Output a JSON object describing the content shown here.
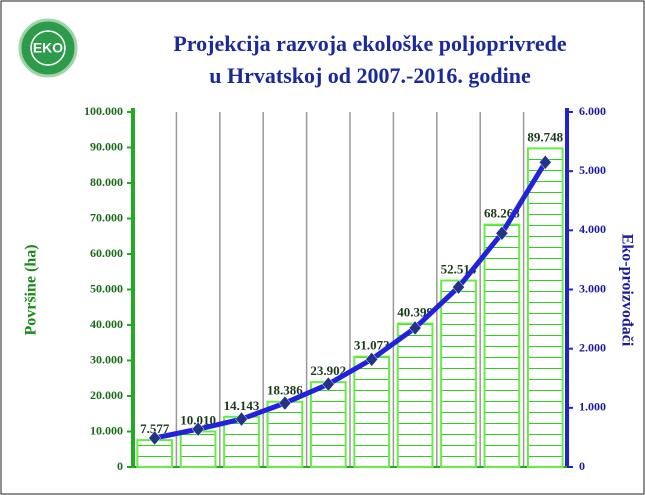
{
  "logo": "EKO",
  "chart_data": {
    "type": "bar",
    "title": [
      "Projekcija razvoja ekološke poljoprivrede",
      "u Hrvatskoj od 2007.-2016. godine"
    ],
    "ylabel": "Površine (ha)",
    "y2label": "Eko-proizvođači",
    "categories": [
      null,
      null,
      null,
      null,
      null,
      null,
      null,
      null,
      null,
      null
    ],
    "series": [
      {
        "type": "bar",
        "color": "#66ee44",
        "values": [
          7577,
          10010,
          14143,
          18386,
          23902,
          31073,
          40399,
          52514,
          68268,
          89748
        ],
        "value_labels": [
          "7.577",
          "10.010",
          "14.143",
          "18.386",
          "23.902",
          "31.073",
          "40.399",
          "52.514",
          "68.268",
          "89.748"
        ]
      },
      {
        "type": "line",
        "axis": "y2",
        "color": "#2222dd",
        "values": [
          490,
          640,
          810,
          1080,
          1400,
          1820,
          2350,
          3040,
          3950,
          5150
        ]
      }
    ],
    "ylim": [
      0,
      100000
    ],
    "yticks": [
      0,
      {
        "value": 10000,
        "label": "10.000"
      },
      {
        "value": 20000,
        "label": "20.000"
      },
      {
        "value": 30000,
        "label": "30.000"
      },
      {
        "value": 40000,
        "label": "40.000"
      },
      {
        "value": 50000,
        "label": "50.000"
      },
      {
        "value": 60000,
        "label": "60.000"
      },
      {
        "value": 70000,
        "label": "70.000"
      },
      {
        "value": 80000,
        "label": "80.000"
      },
      {
        "value": 90000,
        "label": "90.000"
      },
      {
        "value": 100000,
        "label": "100.000"
      }
    ],
    "y2lim": [
      0,
      6000
    ],
    "y2ticks": [
      0,
      {
        "value": 1000,
        "label": "1.000"
      },
      {
        "value": 2000,
        "label": "2.000"
      },
      {
        "value": 3000,
        "label": "3.000"
      },
      {
        "value": 4000,
        "label": "4.000"
      },
      {
        "value": 5000,
        "label": "5.000"
      },
      {
        "value": 6000,
        "label": "6.000"
      }
    ],
    "grid": true
  }
}
